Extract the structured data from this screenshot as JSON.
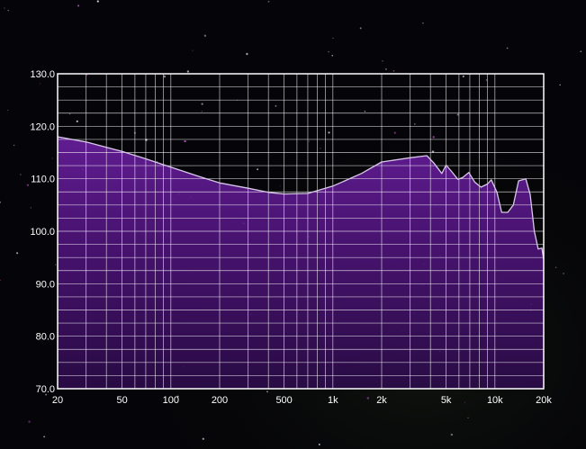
{
  "chart_data": {
    "type": "area",
    "x_scale": "log",
    "xlim": [
      20,
      20000
    ],
    "ylim": [
      70,
      130
    ],
    "grid": true,
    "legend": "none",
    "colors": {
      "background": "#050408",
      "fill": "#5a1a88",
      "line": "#d8c8e8",
      "grid": "#ffffff"
    },
    "x_ticks": [
      {
        "value": 20,
        "label": "20"
      },
      {
        "value": 50,
        "label": "50"
      },
      {
        "value": 100,
        "label": "100"
      },
      {
        "value": 200,
        "label": "200"
      },
      {
        "value": 500,
        "label": "500"
      },
      {
        "value": 1000,
        "label": "1k"
      },
      {
        "value": 2000,
        "label": "2k"
      },
      {
        "value": 5000,
        "label": "5k"
      },
      {
        "value": 10000,
        "label": "10k"
      },
      {
        "value": 20000,
        "label": "20k"
      }
    ],
    "y_ticks": [
      {
        "value": 130,
        "label": "130.0"
      },
      {
        "value": 120,
        "label": "120.0"
      },
      {
        "value": 110,
        "label": "110.0"
      },
      {
        "value": 100,
        "label": "100.0"
      },
      {
        "value": 90,
        "label": "90.0"
      },
      {
        "value": 80,
        "label": "80.0"
      },
      {
        "value": 70,
        "label": "70.0"
      }
    ],
    "series": [
      {
        "x": [
          20,
          30,
          50,
          70,
          100,
          150,
          200,
          300,
          400,
          500,
          700,
          1000,
          1500,
          2000,
          3000,
          3800,
          4200,
          4700,
          5000,
          5400,
          5900,
          6300,
          6900,
          7500,
          8200,
          9000,
          9500,
          10300,
          11000,
          12000,
          13000,
          14000,
          15500,
          16500,
          17500,
          18500,
          19500,
          20000
        ],
        "y": [
          118.0,
          117.0,
          115.2,
          113.8,
          112.2,
          110.4,
          109.2,
          108.2,
          107.4,
          107.1,
          107.2,
          108.6,
          111.0,
          113.2,
          114.0,
          114.4,
          113.0,
          111.0,
          112.6,
          111.4,
          109.9,
          110.2,
          111.2,
          109.4,
          108.4,
          109.0,
          109.8,
          107.4,
          103.6,
          103.6,
          105.0,
          109.6,
          110.0,
          107.0,
          100.0,
          96.6,
          96.8,
          94.6
        ]
      }
    ]
  }
}
